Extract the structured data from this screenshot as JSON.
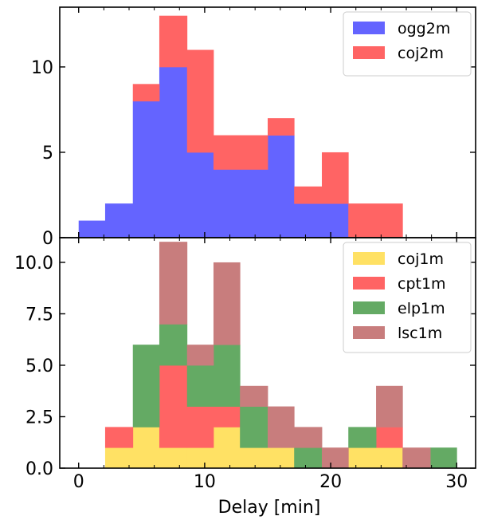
{
  "chart_data": [
    {
      "type": "bar",
      "subtype": "stacked-histogram",
      "panel": "top",
      "xlabel": "",
      "ylabel": "",
      "xlim": [
        -1.5,
        31.5
      ],
      "ylim": [
        0,
        13.5
      ],
      "yticks": [
        0,
        5,
        10
      ],
      "ytick_labels": [
        "0",
        "5",
        "10"
      ],
      "grid": false,
      "legend_position": "top-right",
      "series": [
        {
          "name": "ogg2m",
          "color": "#6464ff",
          "bins": [
            {
              "x0": 0.0,
              "x1": 2.1,
              "value": 1
            },
            {
              "x0": 2.1,
              "x1": 4.3,
              "value": 2
            },
            {
              "x0": 4.3,
              "x1": 6.4,
              "value": 8
            },
            {
              "x0": 6.4,
              "x1": 8.6,
              "value": 10
            },
            {
              "x0": 8.6,
              "x1": 10.7,
              "value": 5
            },
            {
              "x0": 10.7,
              "x1": 12.8,
              "value": 4
            },
            {
              "x0": 12.8,
              "x1": 15.0,
              "value": 4
            },
            {
              "x0": 15.0,
              "x1": 17.1,
              "value": 6
            },
            {
              "x0": 17.1,
              "x1": 19.3,
              "value": 2
            },
            {
              "x0": 19.3,
              "x1": 21.4,
              "value": 2
            }
          ]
        },
        {
          "name": "coj2m",
          "color": "#ff6464",
          "bins": [
            {
              "x0": 4.3,
              "x1": 6.4,
              "value": 1
            },
            {
              "x0": 6.4,
              "x1": 8.6,
              "value": 3
            },
            {
              "x0": 8.6,
              "x1": 10.7,
              "value": 6
            },
            {
              "x0": 10.7,
              "x1": 12.8,
              "value": 2
            },
            {
              "x0": 12.8,
              "x1": 15.0,
              "value": 2
            },
            {
              "x0": 15.0,
              "x1": 17.1,
              "value": 1
            },
            {
              "x0": 17.1,
              "x1": 19.3,
              "value": 1
            },
            {
              "x0": 19.3,
              "x1": 21.4,
              "value": 3
            },
            {
              "x0": 21.4,
              "x1": 25.7,
              "value": 2
            }
          ]
        }
      ]
    },
    {
      "type": "bar",
      "subtype": "stacked-histogram",
      "panel": "bottom",
      "xlabel": "Delay [min]",
      "ylabel": "",
      "xlim": [
        -1.5,
        31.5
      ],
      "ylim": [
        0,
        11.2
      ],
      "xticks": [
        0,
        10,
        20,
        30
      ],
      "xtick_labels": [
        "0",
        "10",
        "20",
        "30"
      ],
      "yticks": [
        0,
        2.5,
        5,
        7.5,
        10
      ],
      "ytick_labels": [
        "0.0",
        "2.5",
        "5.0",
        "7.5",
        "10.0"
      ],
      "grid": false,
      "legend_position": "top-right",
      "series": [
        {
          "name": "coj1m",
          "color": "#ffe164",
          "bins": [
            {
              "x0": 2.1,
              "x1": 4.3,
              "value": 1
            },
            {
              "x0": 4.3,
              "x1": 6.4,
              "value": 2
            },
            {
              "x0": 6.4,
              "x1": 8.6,
              "value": 1
            },
            {
              "x0": 8.6,
              "x1": 10.7,
              "value": 1
            },
            {
              "x0": 10.7,
              "x1": 12.8,
              "value": 2
            },
            {
              "x0": 12.8,
              "x1": 15.0,
              "value": 1
            },
            {
              "x0": 15.0,
              "x1": 17.1,
              "value": 1
            },
            {
              "x0": 21.4,
              "x1": 23.6,
              "value": 1
            },
            {
              "x0": 23.6,
              "x1": 25.7,
              "value": 1
            }
          ]
        },
        {
          "name": "cpt1m",
          "color": "#ff6464",
          "bins": [
            {
              "x0": 2.1,
              "x1": 4.3,
              "value": 1
            },
            {
              "x0": 6.4,
              "x1": 8.6,
              "value": 4
            },
            {
              "x0": 8.6,
              "x1": 10.7,
              "value": 2
            },
            {
              "x0": 10.7,
              "x1": 12.8,
              "value": 1
            },
            {
              "x0": 23.6,
              "x1": 25.7,
              "value": 1
            }
          ]
        },
        {
          "name": "elp1m",
          "color": "#64aa64",
          "bins": [
            {
              "x0": 4.3,
              "x1": 6.4,
              "value": 4
            },
            {
              "x0": 6.4,
              "x1": 8.6,
              "value": 2
            },
            {
              "x0": 8.6,
              "x1": 10.7,
              "value": 2
            },
            {
              "x0": 10.7,
              "x1": 12.8,
              "value": 3
            },
            {
              "x0": 12.8,
              "x1": 15.0,
              "value": 2
            },
            {
              "x0": 17.1,
              "x1": 19.3,
              "value": 1
            },
            {
              "x0": 21.4,
              "x1": 23.6,
              "value": 1
            },
            {
              "x0": 27.9,
              "x1": 30.0,
              "value": 1
            }
          ]
        },
        {
          "name": "lsc1m",
          "color": "#c87d7d",
          "bins": [
            {
              "x0": 6.4,
              "x1": 8.6,
              "value": 4
            },
            {
              "x0": 8.6,
              "x1": 10.7,
              "value": 1
            },
            {
              "x0": 10.7,
              "x1": 12.8,
              "value": 4
            },
            {
              "x0": 12.8,
              "x1": 15.0,
              "value": 1
            },
            {
              "x0": 15.0,
              "x1": 17.1,
              "value": 2
            },
            {
              "x0": 17.1,
              "x1": 19.3,
              "value": 1
            },
            {
              "x0": 19.3,
              "x1": 21.4,
              "value": 1
            },
            {
              "x0": 23.6,
              "x1": 25.7,
              "value": 2
            },
            {
              "x0": 25.7,
              "x1": 27.9,
              "value": 1
            }
          ]
        }
      ]
    }
  ]
}
